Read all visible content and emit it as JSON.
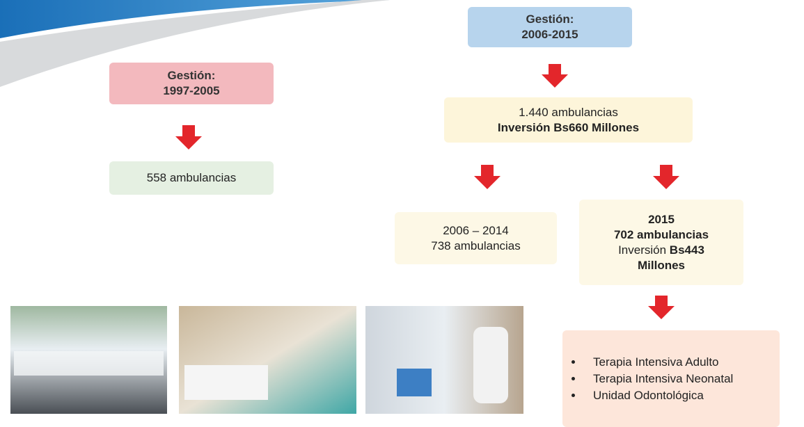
{
  "left": {
    "header": [
      "Gestión:",
      "1997-2005"
    ],
    "result": "558 ambulancias"
  },
  "right": {
    "header": [
      "Gestión:",
      "2006-2015"
    ],
    "total": [
      "1.440 ambulancias",
      "Inversión Bs660 Millones"
    ],
    "branch_a": [
      "2006 – 2014",
      "738 ambulancias"
    ],
    "branch_b": [
      "2015",
      "702 ambulancias",
      "Inversión",
      "Bs443",
      "Millones"
    ],
    "services": [
      "Terapia Intensiva Adulto",
      "Terapia Intensiva Neonatal",
      "Unidad Odontológica"
    ]
  }
}
